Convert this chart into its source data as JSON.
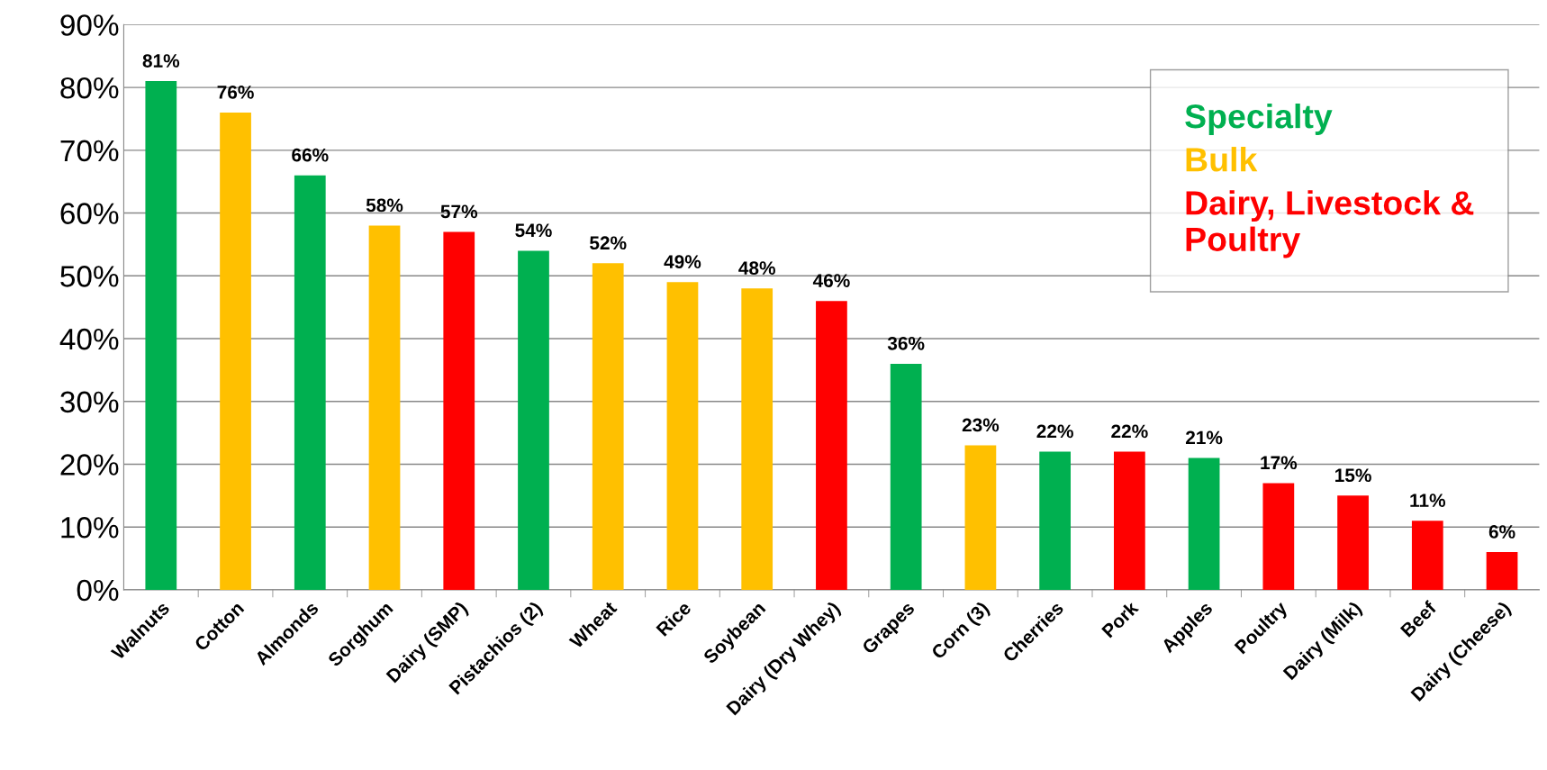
{
  "chart_data": {
    "type": "bar",
    "categories": [
      "Walnuts",
      "Cotton",
      "Almonds",
      "Sorghum",
      "Dairy (SMP)",
      "Pistachios (2)",
      "Wheat",
      "Rice",
      "Soybean",
      "Dairy (Dry Whey)",
      "Grapes",
      "Corn (3)",
      "Cherries",
      "Pork",
      "Apples",
      "Poultry",
      "Dairy (Milk)",
      "Beef",
      "Dairy (Cheese)"
    ],
    "series": [
      {
        "name": "Specialty",
        "color": "#00b050",
        "values": [
          81,
          null,
          66,
          null,
          null,
          54,
          null,
          null,
          null,
          null,
          36,
          null,
          22,
          null,
          21,
          null,
          null,
          null,
          null
        ],
        "value_labels": [
          "81%",
          null,
          "66%",
          null,
          null,
          "54%",
          null,
          null,
          null,
          null,
          "36%",
          null,
          "22%",
          null,
          "21%",
          null,
          null,
          null,
          null
        ]
      },
      {
        "name": "Bulk",
        "color": "#ffc000",
        "values": [
          null,
          76,
          null,
          58,
          null,
          null,
          52,
          49,
          48,
          null,
          null,
          23,
          null,
          null,
          null,
          null,
          null,
          null,
          null
        ],
        "value_labels": [
          null,
          "76%",
          null,
          "58%",
          null,
          null,
          "52%",
          "49%",
          "48%",
          null,
          null,
          "23%",
          null,
          null,
          null,
          null,
          null,
          null,
          null
        ]
      },
      {
        "name": "Dairy, Livestock &\nPoultry",
        "color": "#ff0000",
        "values": [
          null,
          null,
          null,
          null,
          57,
          null,
          null,
          null,
          null,
          46,
          null,
          null,
          null,
          22,
          null,
          17,
          15,
          11,
          6
        ],
        "value_labels": [
          null,
          null,
          null,
          null,
          "57%",
          null,
          null,
          null,
          null,
          "46%",
          null,
          null,
          null,
          "22%",
          null,
          "17%",
          "15%",
          "11%",
          "6%"
        ]
      }
    ],
    "ylim": [
      0,
      90
    ],
    "yticks": [
      {
        "value": 0,
        "label": "0%"
      },
      {
        "value": 10,
        "label": "10%"
      },
      {
        "value": 20,
        "label": "20%"
      },
      {
        "value": 30,
        "label": "30%"
      },
      {
        "value": 40,
        "label": "40%"
      },
      {
        "value": 50,
        "label": "50%"
      },
      {
        "value": 60,
        "label": "60%"
      },
      {
        "value": 70,
        "label": "70%"
      },
      {
        "value": 80,
        "label": "80%"
      },
      {
        "value": 90,
        "label": "90%"
      }
    ],
    "grid": "y",
    "legend": "top right"
  }
}
